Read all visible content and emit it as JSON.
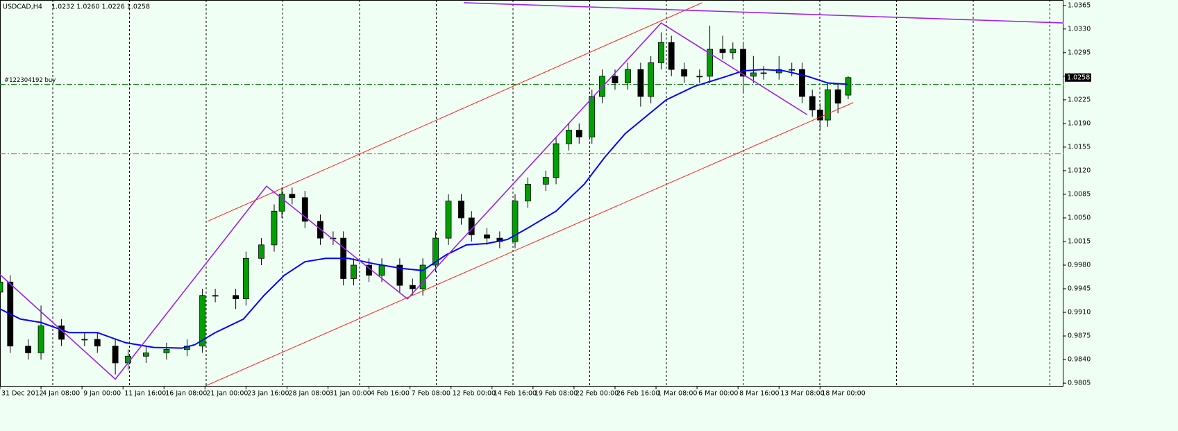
{
  "chart_data": {
    "type": "candlestick",
    "title": "USDCAD,H4",
    "quote": "1.0232 1.0260 1.0226 1.0258",
    "xlim": [
      0,
      415
    ],
    "ylim": [
      0.9801,
      1.0373
    ],
    "xticks": [
      {
        "value": 0,
        "label": "31 Dec 2012"
      },
      {
        "value": 16,
        "label": "4 Jan 08:00"
      },
      {
        "value": 32,
        "label": "9 Jan 00:00"
      },
      {
        "value": 48,
        "label": "11 Jan 16:00"
      },
      {
        "value": 64,
        "label": "16 Jan 08:00"
      },
      {
        "value": 80,
        "label": "21 Jan 00:00"
      },
      {
        "value": 96,
        "label": "23 Jan 16:00"
      },
      {
        "value": 112,
        "label": "28 Jan 08:00"
      },
      {
        "value": 128,
        "label": "31 Jan 00:00"
      },
      {
        "value": 144,
        "label": "4 Feb 16:00"
      },
      {
        "value": 160,
        "label": "7 Feb 08:00"
      },
      {
        "value": 176,
        "label": "12 Feb 00:00"
      },
      {
        "value": 192,
        "label": "14 Feb 16:00"
      },
      {
        "value": 208,
        "label": "19 Feb 08:00"
      },
      {
        "value": 224,
        "label": "22 Feb 00:00"
      },
      {
        "value": 240,
        "label": "26 Feb 16:00"
      },
      {
        "value": 256,
        "label": "1 Mar 08:00"
      },
      {
        "value": 272,
        "label": "6 Mar 00:00"
      },
      {
        "value": 288,
        "label": "8 Mar 16:00"
      },
      {
        "value": 304,
        "label": "13 Mar 08:00"
      },
      {
        "value": 320,
        "label": "18 Mar 00:00"
      }
    ],
    "yticks": [
      {
        "value": 1.0365,
        "label": "1.0365"
      },
      {
        "value": 1.033,
        "label": "1.0330"
      },
      {
        "value": 1.0295,
        "label": "1.0295"
      },
      {
        "value": 1.026,
        "label": "1.0260"
      },
      {
        "value": 1.0225,
        "label": "1.0225"
      },
      {
        "value": 1.019,
        "label": "1.0190"
      },
      {
        "value": 1.0155,
        "label": "1.0155"
      },
      {
        "value": 1.012,
        "label": "1.0120"
      },
      {
        "value": 1.0085,
        "label": "1.0085"
      },
      {
        "value": 1.005,
        "label": "1.0050"
      },
      {
        "value": 1.0015,
        "label": "1.0015"
      },
      {
        "value": 0.998,
        "label": "0.9980"
      },
      {
        "value": 0.9945,
        "label": "0.9945"
      },
      {
        "value": 0.991,
        "label": "0.9910"
      },
      {
        "value": 0.9875,
        "label": "0.9875"
      },
      {
        "value": 0.984,
        "label": "0.9840"
      },
      {
        "value": 0.9805,
        "label": "0.9805"
      }
    ],
    "bull_color": "#00a000",
    "bear_color": "#000000",
    "x": [
      0,
      4,
      11,
      16,
      24,
      33,
      38,
      45,
      50,
      57,
      65,
      73,
      79,
      84,
      92,
      96,
      102,
      107,
      110,
      114,
      119,
      125,
      130,
      134,
      138,
      144,
      149,
      156,
      161,
      165,
      170,
      175,
      180,
      184,
      190,
      195,
      201,
      206,
      213,
      217,
      222,
      226,
      231,
      235,
      240,
      245,
      250,
      254,
      258,
      262,
      267,
      273,
      277,
      282,
      286,
      290,
      294,
      298,
      304,
      309,
      313,
      317,
      320,
      323,
      327,
      331
    ],
    "open": [
      0.994,
      0.9955,
      0.986,
      0.985,
      0.989,
      0.987,
      0.987,
      0.986,
      0.9835,
      0.9845,
      0.985,
      0.9855,
      0.986,
      0.9935,
      0.9935,
      0.993,
      0.999,
      1.001,
      1.006,
      1.0085,
      1.008,
      1.0045,
      1.002,
      1.002,
      0.996,
      0.998,
      0.9965,
      0.998,
      0.995,
      0.9945,
      0.998,
      1.002,
      1.0075,
      1.005,
      1.0025,
      1.002,
      1.0015,
      1.0075,
      1.01,
      1.011,
      1.016,
      1.018,
      1.017,
      1.023,
      1.026,
      1.025,
      1.027,
      1.023,
      1.028,
      1.031,
      1.027,
      1.026,
      1.026,
      1.03,
      1.0295,
      1.03,
      1.026,
      1.0265,
      1.0265,
      1.027,
      1.027,
      1.023,
      1.021,
      1.0195,
      1.024,
      1.0232
    ],
    "high": [
      0.9965,
      0.9965,
      0.987,
      0.992,
      0.99,
      0.988,
      0.988,
      0.987,
      0.9855,
      0.986,
      0.9865,
      0.987,
      0.9945,
      0.9945,
      0.9945,
      1.0,
      1.002,
      1.007,
      1.0095,
      1.0095,
      1.009,
      1.0055,
      1.003,
      1.003,
      0.999,
      0.999,
      0.999,
      0.999,
      0.996,
      0.999,
      1.003,
      1.0085,
      1.0085,
      1.006,
      1.0035,
      1.003,
      1.0085,
      1.011,
      1.012,
      1.017,
      1.019,
      1.019,
      1.024,
      1.027,
      1.027,
      1.028,
      1.028,
      1.029,
      1.0325,
      1.032,
      1.028,
      1.027,
      1.0335,
      1.032,
      1.031,
      1.031,
      1.029,
      1.0275,
      1.029,
      1.028,
      1.028,
      1.024,
      1.022,
      1.025,
      1.025,
      1.026
    ],
    "low": [
      0.993,
      0.985,
      0.984,
      0.984,
      0.986,
      0.986,
      0.985,
      0.9818,
      0.9825,
      0.9835,
      0.984,
      0.9845,
      0.985,
      0.9925,
      0.9915,
      0.992,
      0.998,
      1.0,
      1.005,
      1.007,
      1.0035,
      1.001,
      1.001,
      0.995,
      0.995,
      0.9955,
      0.9955,
      0.994,
      0.9935,
      0.9935,
      0.997,
      1.001,
      1.004,
      1.0015,
      1.001,
      1.0005,
      1.0005,
      1.0065,
      1.009,
      1.01,
      1.015,
      1.016,
      1.016,
      1.022,
      1.024,
      1.024,
      1.0215,
      1.022,
      1.027,
      1.026,
      1.025,
      1.025,
      1.025,
      1.0285,
      1.0285,
      1.0235,
      1.025,
      1.0255,
      1.0255,
      1.026,
      1.022,
      1.02,
      1.018,
      1.0185,
      1.0205,
      1.0226
    ],
    "close": [
      0.9955,
      0.986,
      0.985,
      0.989,
      0.987,
      0.987,
      0.986,
      0.9835,
      0.9845,
      0.985,
      0.9855,
      0.986,
      0.9935,
      0.9935,
      0.993,
      0.999,
      1.001,
      1.006,
      1.0085,
      1.008,
      1.0045,
      1.002,
      1.002,
      0.996,
      0.998,
      0.9965,
      0.998,
      0.995,
      0.9945,
      0.998,
      1.002,
      1.0075,
      1.005,
      1.0025,
      1.002,
      1.0015,
      1.0075,
      1.01,
      1.011,
      1.016,
      1.018,
      1.017,
      1.023,
      1.026,
      1.025,
      1.027,
      1.023,
      1.028,
      1.031,
      1.027,
      1.026,
      1.026,
      1.03,
      1.0295,
      1.03,
      1.026,
      1.0265,
      1.0265,
      1.027,
      1.027,
      1.023,
      1.021,
      1.0195,
      1.024,
      1.022,
      1.0258
    ],
    "moving_average": {
      "color": "#0000ff",
      "x": [
        0,
        8,
        16,
        27,
        38,
        49,
        60,
        71,
        76,
        84,
        95,
        103,
        111,
        119,
        127,
        136,
        146,
        157,
        165,
        174,
        182,
        190,
        198,
        206,
        217,
        228,
        236,
        244,
        252,
        260,
        271,
        282,
        290,
        298,
        306,
        315,
        323,
        331
      ],
      "values": [
        0.9915,
        0.99,
        0.9895,
        0.988,
        0.988,
        0.9865,
        0.9858,
        0.9857,
        0.9862,
        0.988,
        0.99,
        0.9935,
        0.9965,
        0.9985,
        0.999,
        0.999,
        0.9982,
        0.9975,
        0.9972,
        0.9995,
        1.001,
        1.0012,
        1.0018,
        1.0035,
        1.006,
        1.01,
        1.014,
        1.0175,
        1.02,
        1.0225,
        1.0245,
        1.0258,
        1.0268,
        1.027,
        1.0268,
        1.026,
        1.025,
        1.0248
      ]
    },
    "trendlines": [
      {
        "color": "#a020f0",
        "x": [
          0,
          45,
          104,
          159,
          258,
          315
        ],
        "values": [
          0.9966,
          0.9811,
          1.0097,
          0.993,
          1.0339,
          1.0203
        ]
      },
      {
        "color": "#ff2020",
        "x": [
          81,
          274
        ],
        "values": [
          1.0045,
          1.0369
        ]
      },
      {
        "color": "#ff2020",
        "x": [
          79,
          333
        ],
        "values": [
          0.9799,
          1.0221
        ]
      },
      {
        "color": "#a020f0",
        "x": [
          181,
          415
        ],
        "values": [
          1.0369,
          1.0339
        ]
      }
    ],
    "hlines": [
      {
        "value": 1.0248,
        "color": "#008000",
        "label": "#122304192 buy"
      },
      {
        "value": 1.0145,
        "color": "#ff4500"
      }
    ],
    "price_label": {
      "value": 1.0258,
      "label": "1.0258"
    }
  }
}
